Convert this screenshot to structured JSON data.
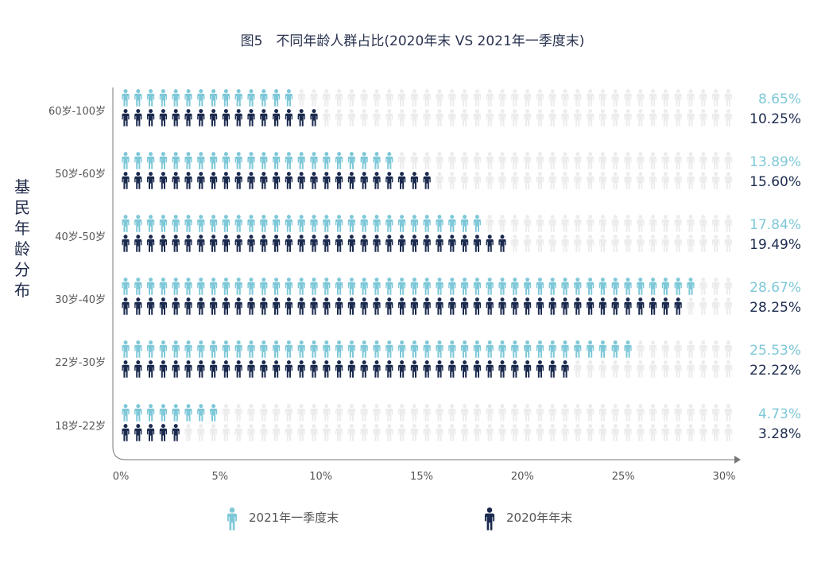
{
  "chart_data": {
    "type": "pictograph-bar",
    "title": "图5　不同年龄人群占比(2020年末 VS 2021年一季度末)",
    "ylabel": "基民年龄分布",
    "xlim": [
      0,
      30
    ],
    "x_ticks": [
      "0%",
      "5%",
      "10%",
      "15%",
      "20%",
      "25%",
      "30%"
    ],
    "categories": [
      "60岁-100岁",
      "50岁-60岁",
      "40岁-50岁",
      "30岁-40岁",
      "22岁-30岁",
      "18岁-22岁"
    ],
    "series": [
      {
        "name": "2021年一季度末",
        "color": "#7ec8d8",
        "values": [
          8.65,
          13.89,
          17.84,
          28.67,
          25.53,
          4.73
        ],
        "labels": [
          "8.65%",
          "13.89%",
          "17.84%",
          "28.67%",
          "25.53%",
          "4.73%"
        ]
      },
      {
        "name": "2020年年末",
        "color": "#1b2a4e",
        "values": [
          10.25,
          15.6,
          19.49,
          28.25,
          22.22,
          3.28
        ],
        "labels": [
          "10.25%",
          "15.60%",
          "19.49%",
          "28.25%",
          "22.22%",
          "3.28%"
        ]
      }
    ],
    "colors": {
      "empty": "#ececec",
      "axis": "#777777"
    },
    "legend_position": "bottom"
  }
}
